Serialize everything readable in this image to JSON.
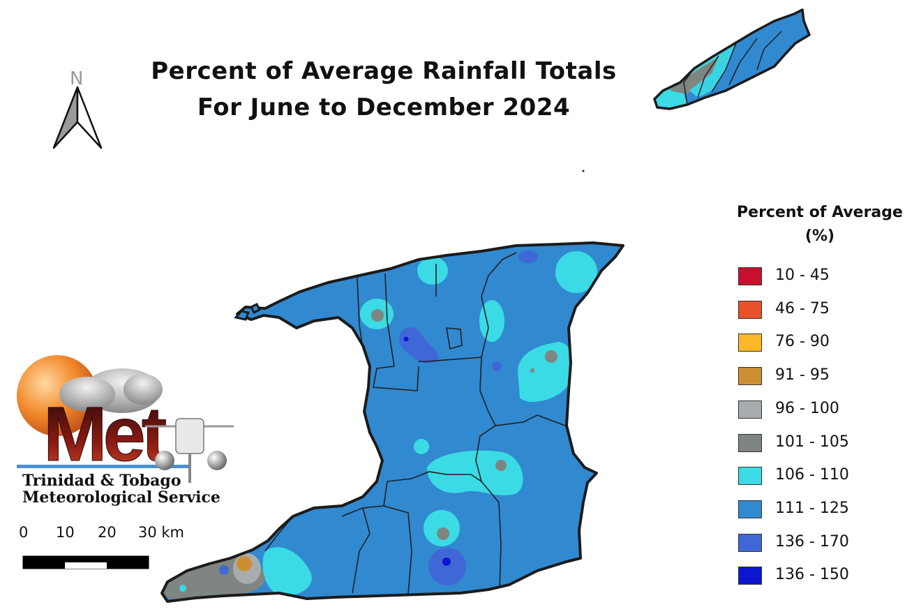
{
  "title": {
    "line1": "Percent of Average Rainfall Totals",
    "line2": "For June to December 2024"
  },
  "north_arrow": {
    "label": "N",
    "icon": "north-arrow-icon"
  },
  "legend": {
    "title_line1": "Percent of Average",
    "title_line2": "(%)",
    "items": [
      {
        "label": "10 - 45",
        "color": "#C8102E"
      },
      {
        "label": "46 - 75",
        "color": "#E8502A"
      },
      {
        "label": "76 - 90",
        "color": "#FDB827"
      },
      {
        "label": "91 - 95",
        "color": "#CD8E33"
      },
      {
        "label": "96 - 100",
        "color": "#A9ACAE"
      },
      {
        "label": "101 - 105",
        "color": "#7F8580"
      },
      {
        "label": "106 - 110",
        "color": "#3ADBE5"
      },
      {
        "label": "111 - 125",
        "color": "#3189D0"
      },
      {
        "label": "136 - 170",
        "color": "#3F68D6"
      },
      {
        "label": "136 - 150",
        "color": "#0C16D1"
      }
    ]
  },
  "logo": {
    "wordmark": "Met",
    "line1": "Trinidad & Tobago",
    "line2": "Meteorological Service"
  },
  "scale_bar": {
    "labels": [
      "0",
      "10",
      "20",
      "30 km"
    ]
  },
  "map": {
    "islands": [
      "Trinidad",
      "Tobago"
    ],
    "dominant_category": "111 - 125"
  }
}
